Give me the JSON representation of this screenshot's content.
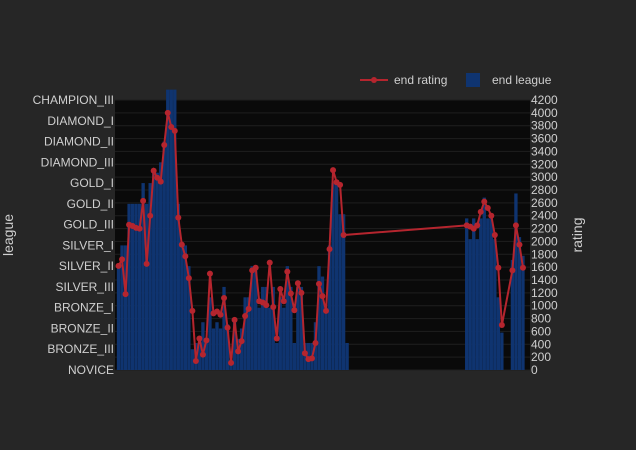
{
  "chart_data": {
    "type": "bar+line",
    "y_left_label": "league",
    "y_right_label": "rating",
    "league_levels": [
      "NOVICE",
      "BRONZE_III",
      "BRONZE_II",
      "BRONZE_I",
      "SILVER_III",
      "SILVER_II",
      "SILVER_I",
      "GOLD_III",
      "GOLD_II",
      "GOLD_I",
      "DIAMOND_III",
      "DIAMOND_II",
      "DIAMOND_I",
      "CHAMPION_III"
    ],
    "rating_ticks": [
      0,
      200,
      400,
      600,
      800,
      1000,
      1200,
      1400,
      1600,
      1800,
      2000,
      2200,
      2400,
      2600,
      2800,
      3000,
      3200,
      3400,
      3600,
      3800,
      4000,
      4200
    ],
    "ylim_rating": [
      0,
      4200
    ],
    "xlim": [
      0,
      118
    ],
    "series": [
      {
        "name": "end rating",
        "type": "line",
        "color": "#b5252e"
      },
      {
        "name": "end league",
        "type": "bar",
        "color": "#0f3470"
      }
    ],
    "legend": {
      "position": "top-right",
      "items": [
        "end rating",
        "end league"
      ]
    },
    "x": [
      1,
      2,
      3,
      4,
      5,
      6,
      7,
      8,
      9,
      10,
      11,
      12,
      13,
      14,
      15,
      16,
      17,
      18,
      19,
      20,
      21,
      22,
      23,
      24,
      25,
      26,
      27,
      28,
      29,
      30,
      31,
      32,
      33,
      34,
      35,
      36,
      37,
      38,
      39,
      40,
      41,
      42,
      43,
      44,
      45,
      46,
      47,
      48,
      49,
      50,
      51,
      52,
      53,
      54,
      55,
      56,
      57,
      58,
      59,
      60,
      61,
      62,
      63,
      64,
      65,
      66,
      67,
      68,
      69,
      70,
      71,
      72,
      73,
      74,
      75,
      76,
      77,
      78,
      79,
      80,
      81,
      82,
      83,
      100,
      101,
      102,
      103,
      104,
      105,
      106,
      107,
      108,
      109,
      110,
      113,
      114,
      115,
      116
    ],
    "end_rating": [
      1620,
      1720,
      1180,
      2260,
      2240,
      2210,
      2200,
      2630,
      1650,
      2400,
      3100,
      2990,
      2930,
      3500,
      4000,
      3780,
      3720,
      2370,
      1950,
      1770,
      1430,
      920,
      140,
      490,
      240,
      460,
      1500,
      880,
      910,
      860,
      1120,
      660,
      110,
      780,
      290,
      450,
      840,
      950,
      1550,
      1590,
      1070,
      1050,
      1010,
      1670,
      980,
      490,
      1260,
      1070,
      1530,
      1190,
      930,
      1350,
      1200,
      260,
      170,
      180,
      420,
      1340,
      1150,
      920,
      1880,
      3110,
      2920,
      2880,
      2100,
      2250,
      2230,
      2200,
      2250,
      2460,
      2620,
      2520,
      2400,
      2100,
      1590,
      700,
      1550,
      2250,
      1950,
      1590
    ],
    "end_rating_x": [
      1,
      2,
      3,
      4,
      5,
      6,
      7,
      8,
      9,
      10,
      11,
      12,
      13,
      14,
      15,
      16,
      17,
      18,
      19,
      20,
      21,
      22,
      23,
      24,
      25,
      26,
      27,
      28,
      29,
      30,
      31,
      32,
      33,
      34,
      35,
      36,
      37,
      38,
      39,
      40,
      41,
      42,
      43,
      44,
      45,
      46,
      47,
      48,
      49,
      50,
      51,
      52,
      53,
      54,
      55,
      56,
      57,
      58,
      59,
      60,
      61,
      62,
      63,
      64,
      65,
      100,
      101,
      102,
      103,
      104,
      105,
      106,
      107,
      108,
      109,
      110,
      113,
      114,
      115,
      116
    ],
    "end_league_x": [
      1,
      2,
      3,
      4,
      5,
      6,
      7,
      8,
      9,
      10,
      11,
      12,
      13,
      14,
      15,
      16,
      17,
      18,
      19,
      20,
      21,
      22,
      23,
      24,
      25,
      26,
      27,
      28,
      29,
      30,
      31,
      32,
      33,
      34,
      35,
      36,
      37,
      38,
      39,
      40,
      41,
      42,
      43,
      44,
      45,
      46,
      47,
      48,
      49,
      50,
      51,
      52,
      53,
      54,
      55,
      56,
      57,
      58,
      59,
      60,
      61,
      62,
      63,
      64,
      65,
      66,
      100,
      101,
      102,
      103,
      104,
      105,
      106,
      107,
      108,
      109,
      110,
      113,
      114,
      115,
      116
    ],
    "end_league": [
      5,
      6,
      6,
      8,
      8,
      8,
      8,
      9,
      8,
      9,
      9.5,
      9.5,
      10,
      11,
      13.5,
      13.5,
      13.5,
      8,
      6,
      6,
      5,
      1,
      1.3,
      1.2,
      2.3,
      1.4,
      3.5,
      2,
      2.3,
      2,
      4,
      2.2,
      0.5,
      2.5,
      1.5,
      2,
      3.5,
      3.5,
      5,
      5,
      3,
      4,
      4,
      3,
      4,
      1.3,
      3.5,
      3,
      5,
      4,
      1.3,
      4,
      4,
      1.3,
      1.3,
      1.3,
      2.3,
      5,
      4.5,
      3,
      6,
      9,
      9,
      7.5,
      7.5,
      1.3,
      7.3,
      6.3,
      7.3,
      6.3,
      7.3,
      8.3,
      7.3,
      7.3,
      6.3,
      3.5,
      1.8,
      5.3,
      8.5,
      6.4,
      5.5
    ],
    "x_tick_labels": [
      "",
      "",
      "",
      "",
      "",
      "",
      "",
      "",
      "",
      "",
      "",
      "",
      "",
      "",
      "",
      "",
      "",
      "",
      "",
      "",
      "",
      "",
      "",
      "",
      "",
      "",
      "",
      "",
      "",
      "",
      "",
      "",
      "",
      "",
      "",
      "",
      "",
      "",
      "",
      "",
      "",
      "",
      "",
      "",
      "",
      "",
      "",
      "",
      "",
      "",
      "",
      "",
      "",
      "",
      "",
      "",
      "",
      "",
      "",
      "",
      "",
      "",
      "",
      "",
      "",
      "",
      "",
      "",
      "",
      "",
      "",
      "",
      "",
      "",
      "",
      "",
      "",
      "",
      "",
      "",
      "",
      "",
      "",
      "",
      "",
      "",
      "",
      "",
      "",
      "",
      "",
      "",
      "",
      "",
      ""
    ]
  }
}
